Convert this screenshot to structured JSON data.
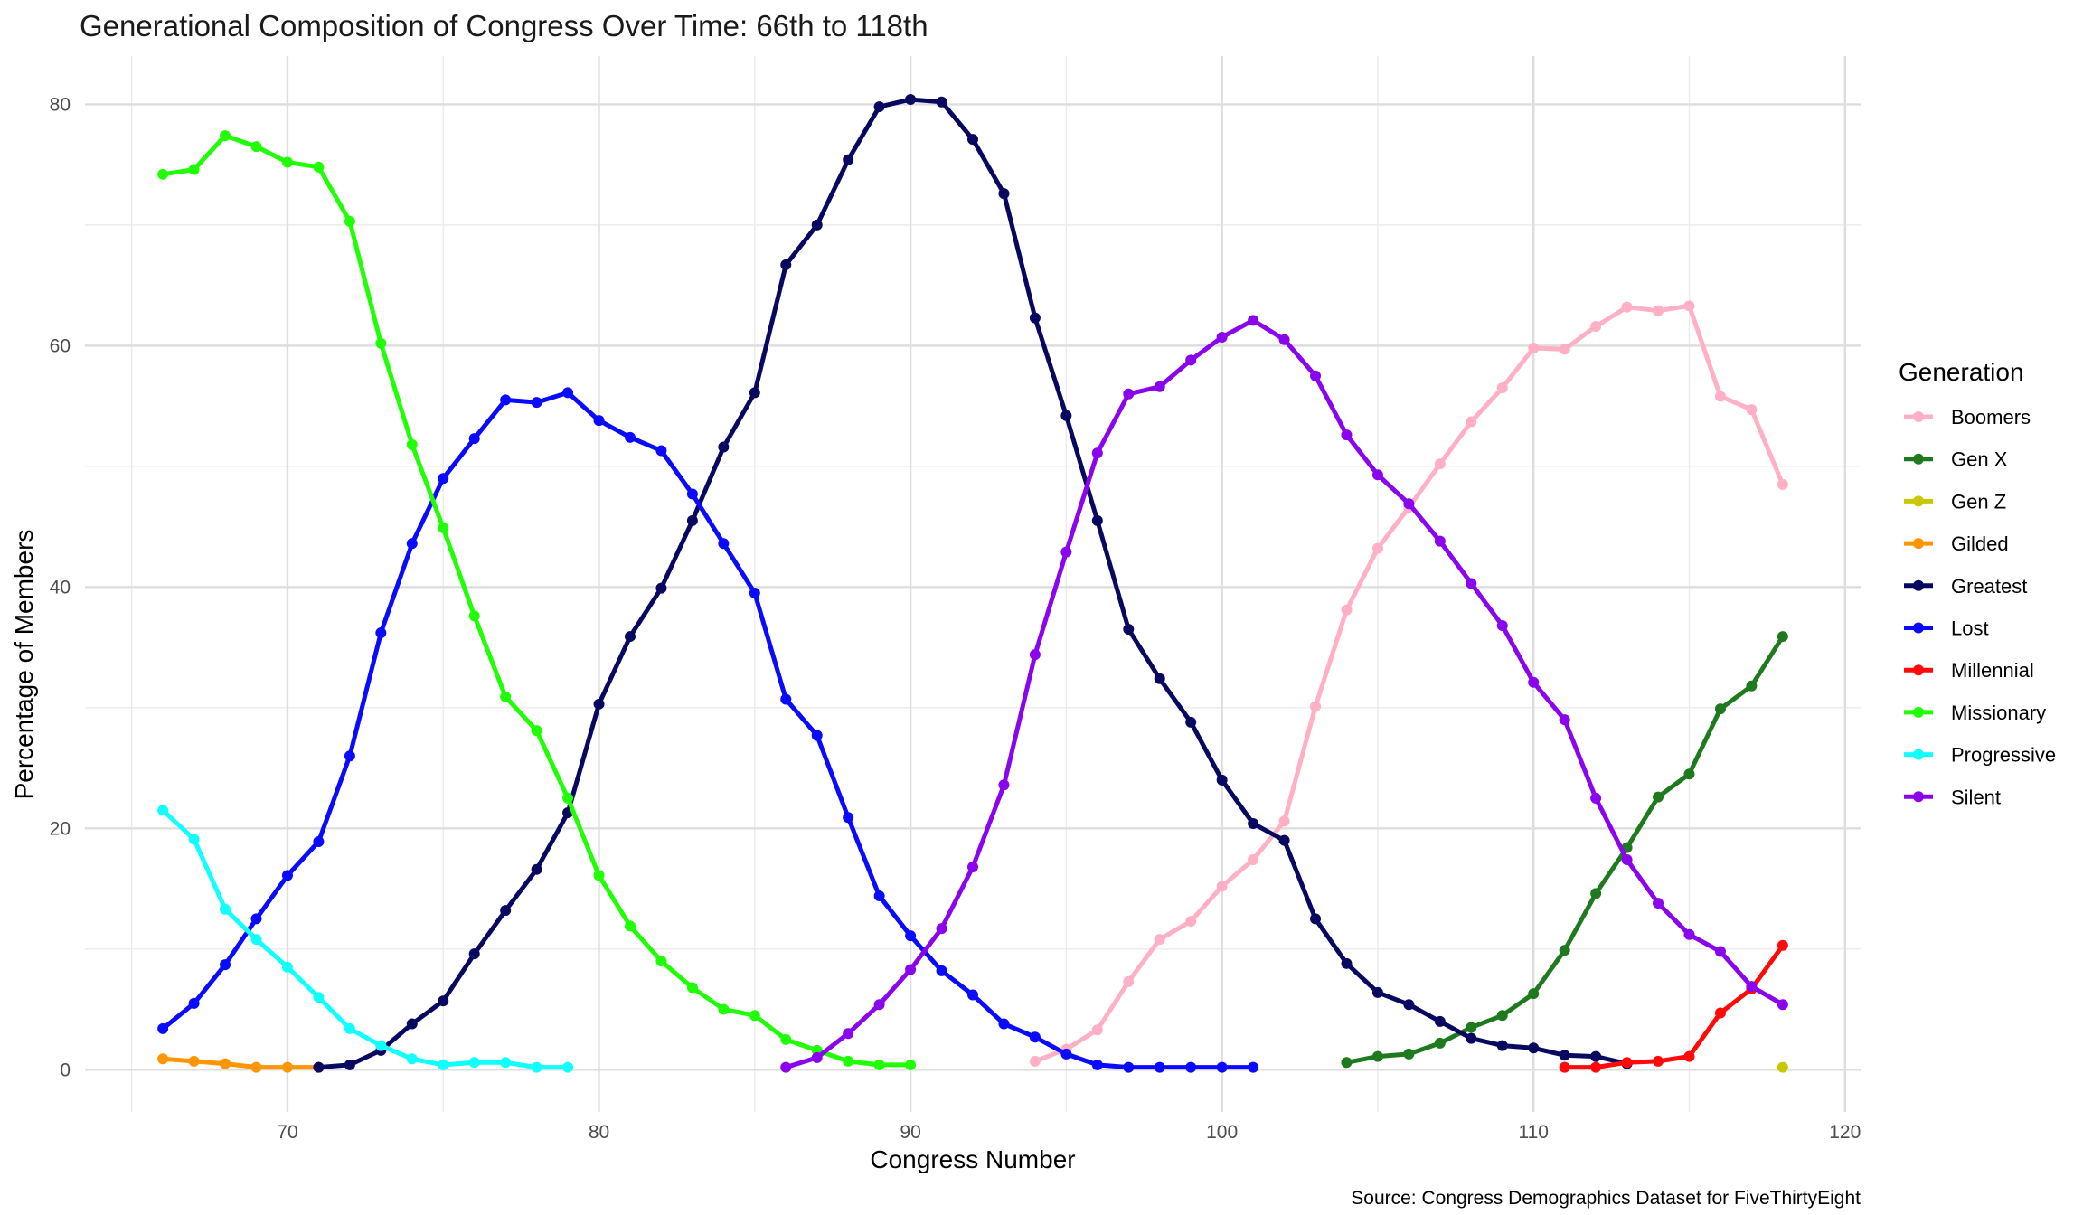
{
  "chart_data": {
    "type": "line",
    "title": "Generational Composition of Congress Over Time: 66th to 118th",
    "xlabel": "Congress Number",
    "ylabel": "Percentage of Members",
    "caption": "Source: Congress Demographics Dataset for FiveThirtyEight",
    "legend_title": "Generation",
    "legend_position": "right",
    "grid": true,
    "xlim": [
      63.5,
      120.5
    ],
    "ylim": [
      -3.5,
      84
    ],
    "x_ticks": [
      70,
      80,
      90,
      100,
      110,
      120
    ],
    "y_ticks": [
      0,
      20,
      40,
      60,
      80
    ],
    "series": [
      {
        "name": "Boomers",
        "color": "#ffb0c4",
        "x": [
          94,
          95,
          96,
          97,
          98,
          99,
          100,
          101,
          102,
          103,
          104,
          105,
          106,
          107,
          108,
          109,
          110,
          111,
          112,
          113,
          114,
          115,
          116,
          117,
          118
        ],
        "y": [
          0.7,
          1.7,
          3.3,
          7.3,
          10.8,
          12.3,
          15.2,
          17.4,
          20.6,
          30.1,
          38.1,
          43.2,
          46.6,
          50.2,
          53.7,
          56.5,
          59.8,
          59.7,
          61.6,
          63.2,
          62.9,
          63.3,
          55.8,
          54.7,
          48.5
        ]
      },
      {
        "name": "Gen X",
        "color": "#1f7a1f",
        "x": [
          104,
          105,
          106,
          107,
          108,
          109,
          110,
          111,
          112,
          113,
          114,
          115,
          116,
          117,
          118
        ],
        "y": [
          0.6,
          1.1,
          1.3,
          2.2,
          3.5,
          4.5,
          6.3,
          9.9,
          14.6,
          18.4,
          22.6,
          24.5,
          29.9,
          31.8,
          35.9
        ]
      },
      {
        "name": "Gen Z",
        "color": "#c8c800",
        "x": [
          118
        ],
        "y": [
          0.2
        ]
      },
      {
        "name": "Gilded",
        "color": "#ff9500",
        "x": [
          66,
          67,
          68,
          69,
          70,
          71
        ],
        "y": [
          0.9,
          0.7,
          0.5,
          0.2,
          0.2,
          0.2
        ]
      },
      {
        "name": "Greatest",
        "color": "#080860",
        "x": [
          71,
          72,
          73,
          74,
          75,
          76,
          77,
          78,
          79,
          80,
          81,
          82,
          83,
          84,
          85,
          86,
          87,
          88,
          89,
          90,
          91,
          92,
          93,
          94,
          95,
          96,
          97,
          98,
          99,
          100,
          101,
          102,
          103,
          104,
          105,
          106,
          107,
          108,
          109,
          110,
          111,
          112,
          113
        ],
        "y": [
          0.2,
          0.4,
          1.6,
          3.8,
          5.7,
          9.6,
          13.2,
          16.6,
          21.3,
          30.3,
          35.9,
          39.9,
          45.5,
          51.6,
          56.1,
          66.7,
          70.0,
          75.4,
          79.8,
          80.4,
          80.2,
          77.1,
          72.6,
          62.3,
          54.2,
          45.5,
          36.5,
          32.4,
          28.8,
          24.0,
          20.4,
          19.0,
          12.5,
          8.8,
          6.4,
          5.4,
          4.0,
          2.6,
          2.0,
          1.8,
          1.2,
          1.1,
          0.5
        ]
      },
      {
        "name": "Lost",
        "color": "#0a0aff",
        "x": [
          66,
          67,
          68,
          69,
          70,
          71,
          72,
          73,
          74,
          75,
          76,
          77,
          78,
          79,
          80,
          81,
          82,
          83,
          84,
          85,
          86,
          87,
          88,
          89,
          90,
          91,
          92,
          93,
          94,
          95,
          96,
          97,
          98,
          99,
          100,
          101
        ],
        "y": [
          3.4,
          5.5,
          8.7,
          12.5,
          16.1,
          18.9,
          26.0,
          36.2,
          43.6,
          49.0,
          52.3,
          55.5,
          55.3,
          56.1,
          53.8,
          52.4,
          51.3,
          47.7,
          43.6,
          39.5,
          30.7,
          27.7,
          20.9,
          14.4,
          11.1,
          8.2,
          6.2,
          3.8,
          2.7,
          1.3,
          0.4,
          0.2,
          0.2,
          0.2,
          0.2,
          0.2
        ]
      },
      {
        "name": "Millennial",
        "color": "#ff0a0a",
        "x": [
          111,
          112,
          113,
          114,
          115,
          116,
          117,
          118
        ],
        "y": [
          0.2,
          0.2,
          0.6,
          0.7,
          1.1,
          4.7,
          6.7,
          10.3
        ]
      },
      {
        "name": "Missionary",
        "color": "#20ff05",
        "x": [
          66,
          67,
          68,
          69,
          70,
          71,
          72,
          73,
          74,
          75,
          76,
          77,
          78,
          79,
          80,
          81,
          82,
          83,
          84,
          85,
          86,
          87,
          88,
          89,
          90
        ],
        "y": [
          74.2,
          74.6,
          77.4,
          76.5,
          75.2,
          74.8,
          70.3,
          60.2,
          51.8,
          44.9,
          37.6,
          30.9,
          28.1,
          22.5,
          16.1,
          11.9,
          9.0,
          6.8,
          5.0,
          4.5,
          2.5,
          1.6,
          0.7,
          0.4,
          0.4
        ]
      },
      {
        "name": "Progressive",
        "color": "#10ffff",
        "x": [
          66,
          67,
          68,
          69,
          70,
          71,
          72,
          73,
          74,
          75,
          76,
          77,
          78,
          79
        ],
        "y": [
          21.5,
          19.1,
          13.3,
          10.8,
          8.5,
          6.0,
          3.4,
          2.0,
          0.9,
          0.4,
          0.6,
          0.6,
          0.2,
          0.2
        ]
      },
      {
        "name": "Silent",
        "color": "#8a05ee",
        "x": [
          86,
          87,
          88,
          89,
          90,
          91,
          92,
          93,
          94,
          95,
          96,
          97,
          98,
          99,
          100,
          101,
          102,
          103,
          104,
          105,
          106,
          107,
          108,
          109,
          110,
          111,
          112,
          113,
          114,
          115,
          116,
          117,
          118
        ],
        "y": [
          0.2,
          1.0,
          3.0,
          5.4,
          8.3,
          11.7,
          16.8,
          23.6,
          34.4,
          42.9,
          51.1,
          56.0,
          56.6,
          58.8,
          60.7,
          62.1,
          60.5,
          57.5,
          52.6,
          49.3,
          46.9,
          43.8,
          40.3,
          36.8,
          32.1,
          29.0,
          22.5,
          17.4,
          13.8,
          11.2,
          9.8,
          6.9,
          5.4
        ]
      }
    ]
  }
}
